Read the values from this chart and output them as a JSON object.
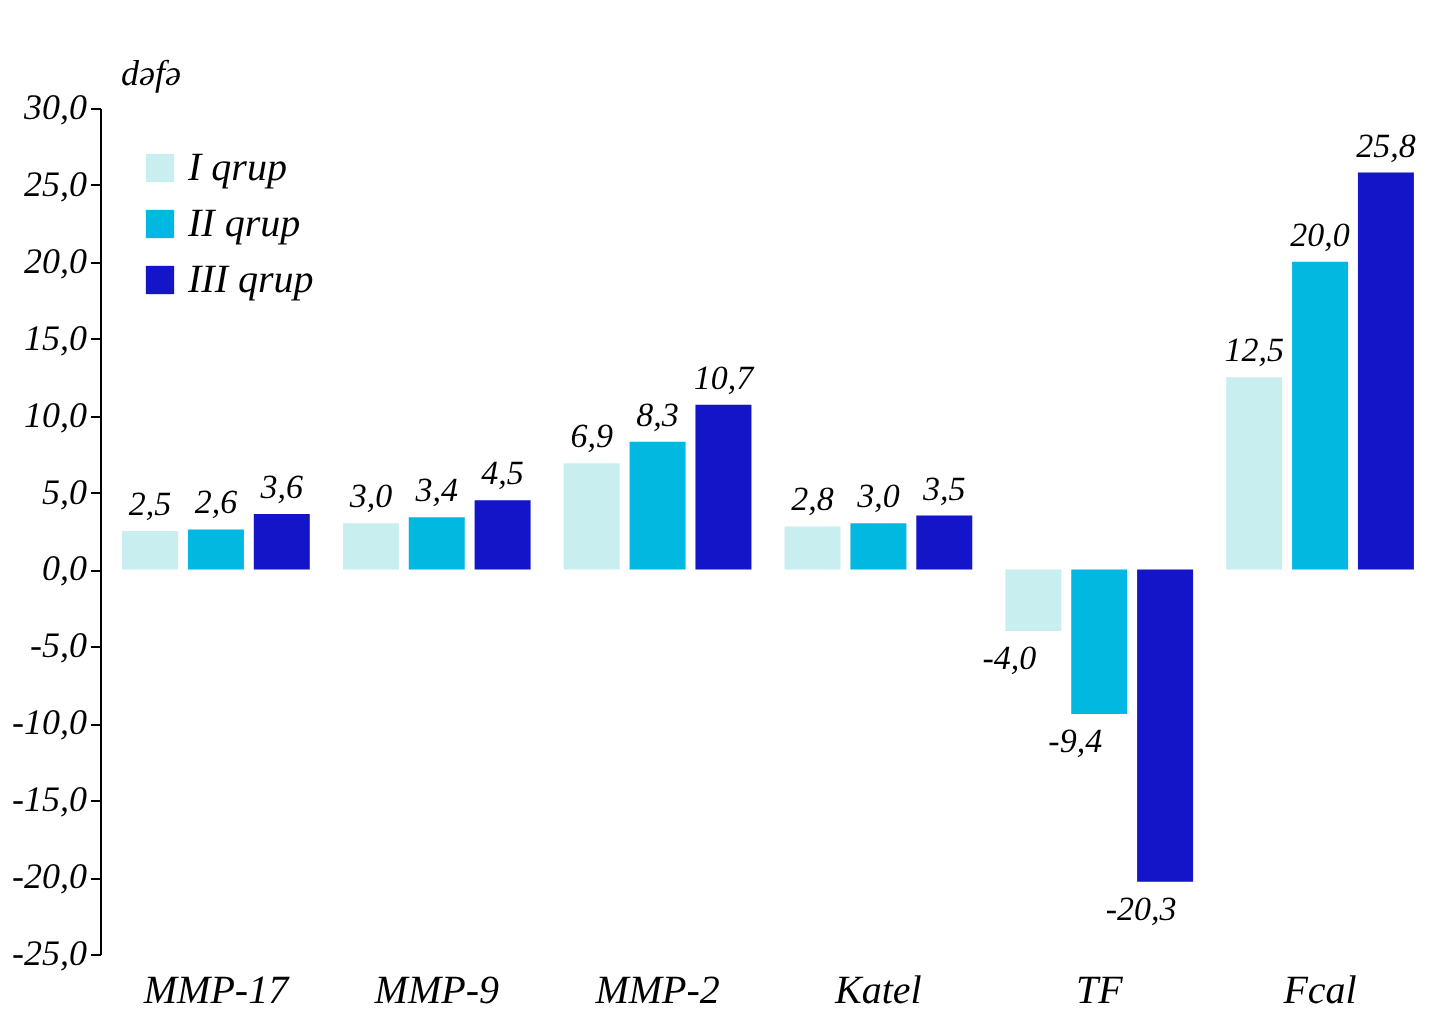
{
  "chart_data": {
    "type": "bar",
    "ylabel": "dəfə",
    "categories": [
      "MMP-17",
      "MMP-9",
      "MMP-2",
      "Katel",
      "TF",
      "Fcal"
    ],
    "series": [
      {
        "name": "I qrup",
        "color": "#c8eef0",
        "values": [
          2.5,
          3.0,
          6.9,
          2.8,
          -4.0,
          12.5
        ],
        "value_labels": [
          "2,5",
          "3,0",
          "6,9",
          "2,8",
          "-4,0",
          "12,5"
        ]
      },
      {
        "name": "II qrup",
        "color": "#00b8e0",
        "values": [
          2.6,
          3.4,
          8.3,
          3.0,
          -9.4,
          20.0
        ],
        "value_labels": [
          "2,6",
          "3,4",
          "8,3",
          "3,0",
          "-9,4",
          "20,0"
        ]
      },
      {
        "name": "III qrup",
        "color": "#1414c8",
        "values": [
          3.6,
          4.5,
          10.7,
          3.5,
          -20.3,
          25.8
        ],
        "value_labels": [
          "3,6",
          "4,5",
          "10,7",
          "3,5",
          "-20,3",
          "25,8"
        ]
      }
    ],
    "ylim": [
      -25,
      30
    ],
    "yticks": [
      {
        "value": -25,
        "label": "-25,0"
      },
      {
        "value": -20,
        "label": "-20,0"
      },
      {
        "value": -15,
        "label": "-15,0"
      },
      {
        "value": -10,
        "label": "-10,0"
      },
      {
        "value": -5,
        "label": "-5,0"
      },
      {
        "value": 0,
        "label": "0,0"
      },
      {
        "value": 5,
        "label": "5,0"
      },
      {
        "value": 10,
        "label": "10,0"
      },
      {
        "value": 15,
        "label": "15,0"
      },
      {
        "value": 20,
        "label": "20,0"
      },
      {
        "value": 25,
        "label": "25,0"
      },
      {
        "value": 30,
        "label": "30,0"
      }
    ],
    "grid": false,
    "legend": "top left"
  }
}
